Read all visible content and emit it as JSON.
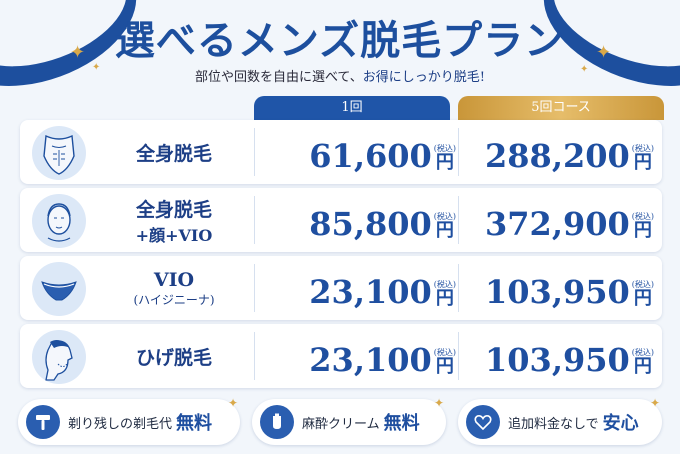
{
  "header": {
    "title": "選べるメンズ脱毛プラン",
    "subtitle_pre": "部位や回数を自由に選べて、",
    "subtitle_emph": "お得にしっかり脱毛!"
  },
  "columns": {
    "one_label": "1回",
    "five_label": "5回コース"
  },
  "tax_label": "(税込)",
  "yen": "円",
  "plans": [
    {
      "name_line1": "全身脱毛",
      "name_line2": "",
      "name_line3": "",
      "icon": "body-icon",
      "price_once": "61,600",
      "price_five": "288,200"
    },
    {
      "name_line1": "全身脱毛",
      "name_line2": "+顔+VIO",
      "name_line3": "",
      "icon": "face-icon",
      "price_once": "85,800",
      "price_five": "372,900"
    },
    {
      "name_line1": "VIO",
      "name_line2": "",
      "name_line3": "(ハイジニーナ)",
      "icon": "underwear-icon",
      "price_once": "23,100",
      "price_five": "103,950"
    },
    {
      "name_line1": "ひげ脱毛",
      "name_line2": "",
      "name_line3": "",
      "icon": "beard-icon",
      "price_once": "23,100",
      "price_five": "103,950"
    }
  ],
  "badges": [
    {
      "text": "剃り残しの剃毛代",
      "strong": "無料",
      "icon": "razor-icon"
    },
    {
      "text": "麻酔クリーム",
      "strong": "無料",
      "icon": "cream-tube-icon"
    },
    {
      "text": "追加料金なしで",
      "strong": "安心",
      "icon": "heart-icon"
    }
  ],
  "colors": {
    "brand_blue": "#1d4f9e",
    "gold": "#d9a94a"
  }
}
